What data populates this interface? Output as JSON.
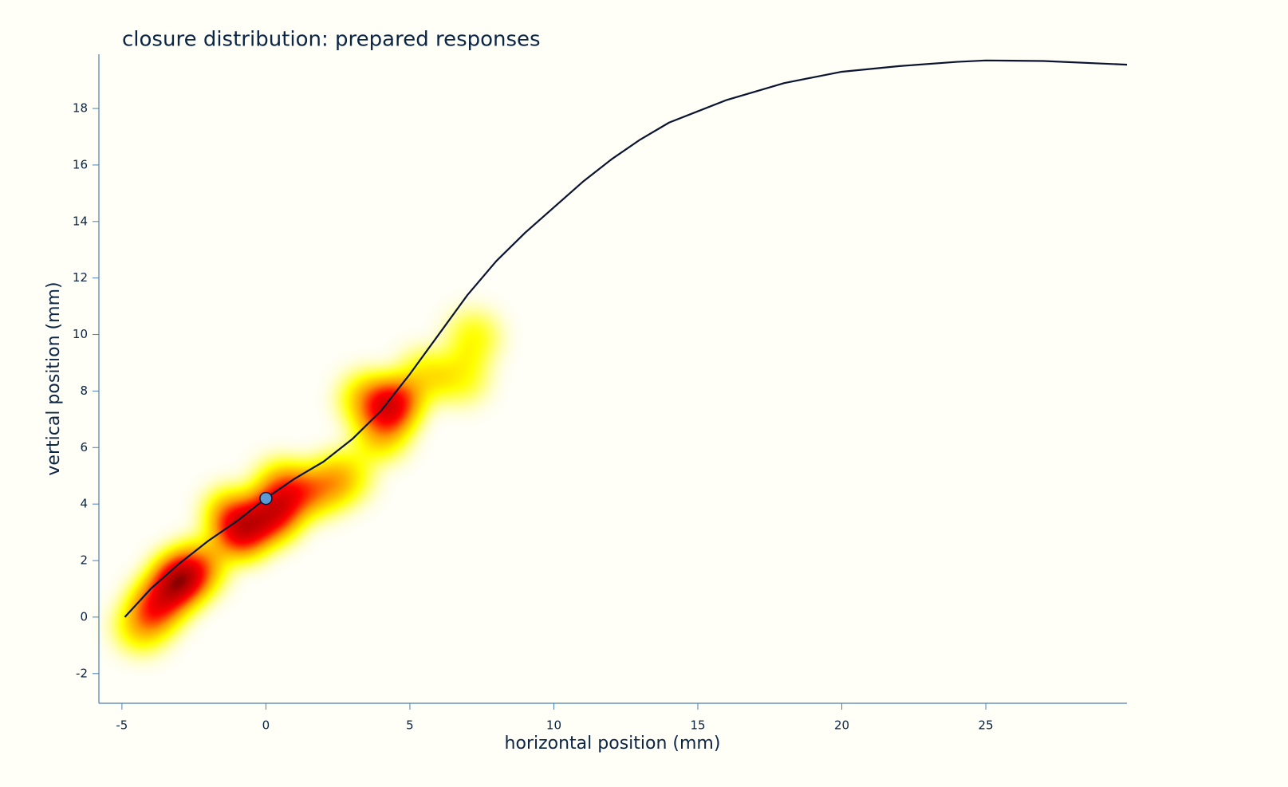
{
  "chart_data": {
    "type": "line",
    "title": "closure distribution: prepared responses",
    "x_label": "horizontal position (mm)",
    "y_label": "vertical position (mm)",
    "xlim": [
      -5.8,
      29.9
    ],
    "ylim": [
      -3.05,
      19.92
    ],
    "xticks": [
      -5,
      0,
      5,
      10,
      15,
      20,
      25
    ],
    "yticks": [
      -2,
      0,
      2,
      4,
      6,
      8,
      10,
      12,
      14,
      16,
      18
    ],
    "axis_color": "#4a7fb5",
    "line_color": "#0a1430",
    "x": [
      -4.9,
      -4,
      -3,
      -2,
      -1,
      0,
      1,
      2,
      3,
      4,
      5,
      6,
      7,
      8,
      9,
      10,
      11,
      12,
      13,
      14,
      15,
      16,
      17,
      18,
      19,
      20,
      22,
      24,
      25,
      27,
      29.9
    ],
    "y": [
      0,
      1,
      1.9,
      2.7,
      3.4,
      4.2,
      4.9,
      5.5,
      6.3,
      7.3,
      8.6,
      10.0,
      11.4,
      12.6,
      13.6,
      14.5,
      15.4,
      16.2,
      16.9,
      17.5,
      17.9,
      18.3,
      18.6,
      18.9,
      19.1,
      19.3,
      19.5,
      19.65,
      19.7,
      19.68,
      19.55
    ],
    "marker": {
      "x": 0,
      "y": 4.2,
      "color": "#5b9bd5"
    },
    "density": {
      "x": [
        -3,
        -3.7,
        -4.3,
        -2.3,
        -0.8,
        0.2,
        1,
        2,
        2.8,
        4.4,
        4,
        3.5,
        5.5,
        6.8,
        7.2,
        -1.2,
        0.5
      ],
      "y": [
        1.3,
        0.5,
        -0.3,
        1.8,
        3.0,
        3.6,
        4.3,
        4.6,
        5.0,
        7.5,
        6.5,
        7.7,
        8.5,
        8.5,
        9.9,
        3.6,
        4.6
      ],
      "values": [
        1.0,
        0.7,
        0.4,
        0.5,
        0.8,
        0.8,
        0.5,
        0.4,
        0.3,
        0.8,
        0.4,
        0.4,
        0.3,
        0.25,
        0.25,
        0.5,
        0.4
      ]
    }
  }
}
